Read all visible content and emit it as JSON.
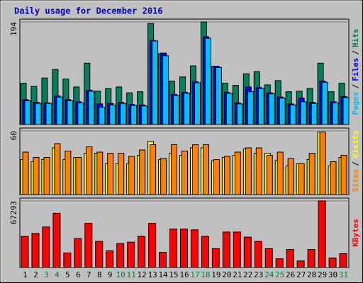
{
  "chart_data": [
    {
      "type": "bar",
      "title": "Daily usage for December 2016",
      "categories": [
        "1",
        "2",
        "3",
        "4",
        "5",
        "6",
        "7",
        "8",
        "9",
        "10",
        "11",
        "12",
        "13",
        "14",
        "15",
        "16",
        "17",
        "18",
        "19",
        "20",
        "21",
        "22",
        "23",
        "24",
        "25",
        "26",
        "27",
        "28",
        "29",
        "30",
        "31"
      ],
      "category_colors": [
        "#000000",
        "#000000",
        "#008040",
        "#008040",
        "#000000",
        "#000000",
        "#000000",
        "#000000",
        "#000000",
        "#008040",
        "#008040",
        "#000000",
        "#000000",
        "#000000",
        "#000000",
        "#000000",
        "#008040",
        "#008040",
        "#000000",
        "#000000",
        "#000000",
        "#000000",
        "#000000",
        "#008040",
        "#008040",
        "#000000",
        "#000000",
        "#000000",
        "#000000",
        "#000000",
        "#008040"
      ],
      "legend_separator": "/",
      "ylim": [
        0,
        194
      ],
      "yticks": [
        194
      ],
      "series": [
        {
          "name": "Pages",
          "color": "#00C0FF",
          "values": [
            45,
            40,
            40,
            52,
            45,
            41,
            63,
            33,
            37,
            40,
            36,
            35,
            158,
            130,
            55,
            59,
            79,
            163,
            108,
            59,
            39,
            62,
            68,
            58,
            50,
            37,
            43,
            40,
            80,
            41,
            51
          ]
        },
        {
          "name": "Files",
          "color": "#0000FF",
          "values": [
            47,
            42,
            41,
            54,
            47,
            43,
            65,
            39,
            40,
            42,
            38,
            37,
            159,
            135,
            57,
            61,
            81,
            166,
            110,
            61,
            41,
            71,
            70,
            60,
            52,
            39,
            50,
            42,
            82,
            43,
            53
          ]
        },
        {
          "name": "Hits",
          "color": "#00805C",
          "values": [
            78,
            72,
            88,
            104,
            86,
            71,
            116,
            63,
            68,
            71,
            60,
            62,
            191,
            134,
            82,
            90,
            111,
            194,
            110,
            78,
            74,
            96,
            100,
            75,
            83,
            62,
            63,
            68,
            116,
            62,
            78
          ]
        }
      ]
    },
    {
      "type": "bar",
      "ylim": [
        0,
        60
      ],
      "yticks": [
        60
      ],
      "legend_separator": "/",
      "series": [
        {
          "name": "Sites",
          "color": "#FF8000",
          "values": [
            40,
            35,
            35,
            48,
            41,
            35,
            45,
            40,
            39,
            39,
            36,
            42,
            47,
            34,
            47,
            41,
            47,
            47,
            33,
            36,
            40,
            44,
            44,
            37,
            40,
            34,
            29,
            39,
            59,
            31,
            37
          ]
        },
        {
          "name": "Visits",
          "color": "#FFFF00",
          "values": [
            33,
            31,
            33,
            44,
            33,
            35,
            39,
            39,
            29,
            29,
            29,
            37,
            50,
            33,
            39,
            37,
            44,
            44,
            32,
            35,
            37,
            43,
            39,
            39,
            32,
            27,
            29,
            33,
            59,
            27,
            35
          ]
        }
      ]
    },
    {
      "type": "bar",
      "ylim": [
        0,
        67293
      ],
      "yticks": [
        67293
      ],
      "series": [
        {
          "name": "KBytes",
          "color": "#FF0000",
          "values": [
            31450,
            34380,
            40960,
            54860,
            14630,
            29260,
            44620,
            26330,
            16820,
            24140,
            25600,
            31450,
            44620,
            15360,
            38770,
            38770,
            38040,
            31450,
            19020,
            35840,
            35840,
            30720,
            26330,
            19020,
            8780,
            18290,
            6580,
            18290,
            67293,
            9510,
            13900
          ]
        }
      ]
    }
  ]
}
